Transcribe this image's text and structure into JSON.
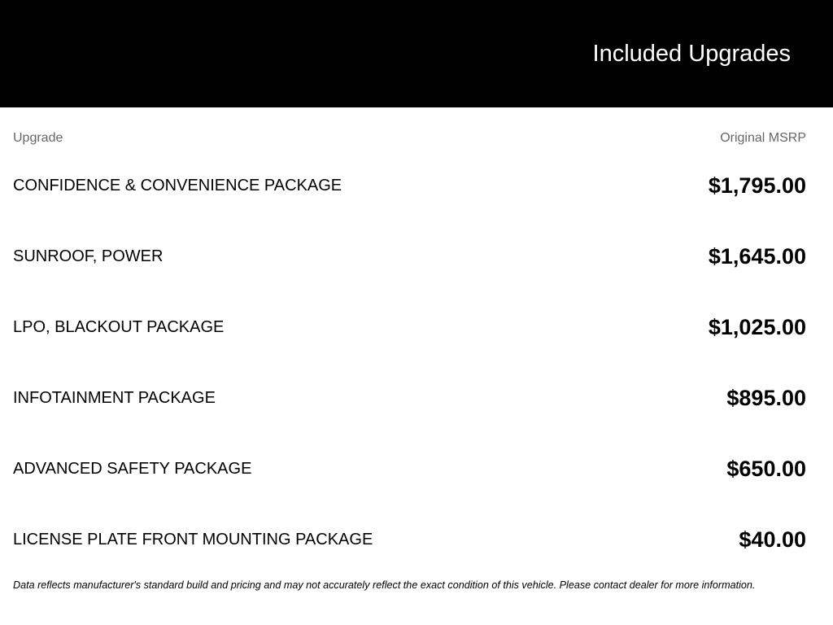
{
  "header": {
    "title": "Included Upgrades"
  },
  "table": {
    "columns": {
      "upgrade": "Upgrade",
      "msrp": "Original MSRP"
    },
    "rows": [
      {
        "name": "CONFIDENCE & CONVENIENCE PACKAGE",
        "price": "$1,795.00"
      },
      {
        "name": "SUNROOF, POWER",
        "price": "$1,645.00"
      },
      {
        "name": "LPO, BLACKOUT PACKAGE",
        "price": "$1,025.00"
      },
      {
        "name": "INFOTAINMENT PACKAGE",
        "price": "$895.00"
      },
      {
        "name": "ADVANCED SAFETY PACKAGE",
        "price": "$650.00"
      },
      {
        "name": "LICENSE PLATE FRONT MOUNTING PACKAGE",
        "price": "$40.00"
      }
    ]
  },
  "footer": {
    "disclaimer": "Data reflects manufacturer's standard build and pricing and may not accurately reflect the exact condition of this vehicle. Please contact dealer for more information."
  }
}
